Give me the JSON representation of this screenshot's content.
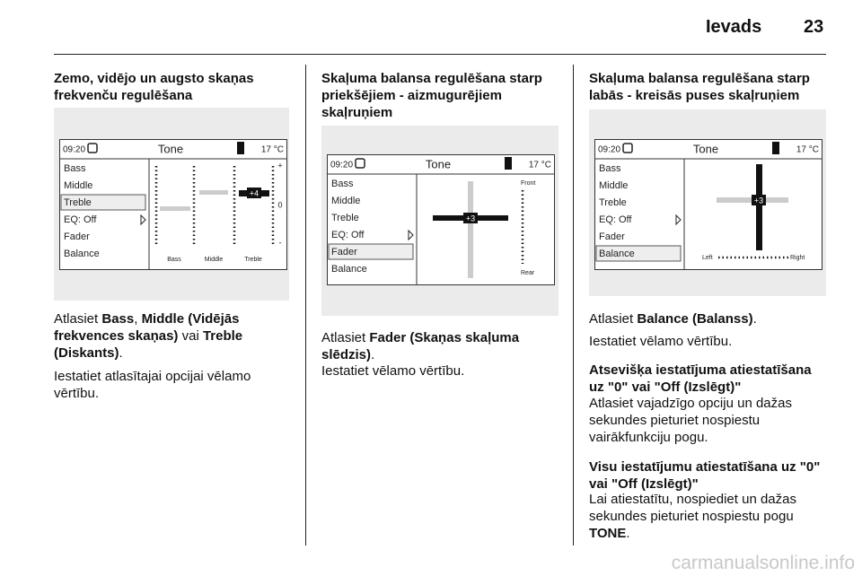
{
  "header": {
    "title": "Ievads",
    "page": "23"
  },
  "columns": [
    {
      "heading": "Zemo, vidējo un augsto skaņas frekvenču regulēšana",
      "screen": {
        "time": "09:20",
        "title": "Tone",
        "temp": "17 °C",
        "menu": [
          "Bass",
          "Middle",
          "Treble",
          "EQ: Off",
          "Fader",
          "Balance"
        ],
        "value": "+4",
        "bands": [
          "Bass",
          "Middle",
          "Treble"
        ],
        "scale": [
          "+",
          "0",
          "-"
        ]
      },
      "paragraphs": [
        [
          {
            "text": "Atlasiet ",
            "bold": false
          },
          {
            "text": "Bass",
            "bold": true
          },
          {
            "text": ", ",
            "bold": false
          },
          {
            "text": "Middle (Vidējās frekvences skaņas)",
            "bold": true
          },
          {
            "text": " vai ",
            "bold": false
          },
          {
            "text": "Treble (Diskants)",
            "bold": true
          },
          {
            "text": ".",
            "bold": false
          }
        ],
        [
          {
            "text": "Iestatiet atlasītajai opcijai vēlamo vērtību.",
            "bold": false
          }
        ]
      ]
    },
    {
      "heading": "Skaļuma balansa regulēšana starp priekšējiem - aizmugurējiem skaļruņiem",
      "screen": {
        "time": "09:20",
        "title": "Tone",
        "temp": "17 °C",
        "menu": [
          "Bass",
          "Middle",
          "Treble",
          "EQ: Off",
          "Fader",
          "Balance"
        ],
        "value": "+3",
        "front": "Front",
        "rear": "Rear"
      },
      "paragraphs": [
        [
          {
            "text": "Atlasiet ",
            "bold": false
          },
          {
            "text": "Fader (Skaņas skaļuma slēdzis)",
            "bold": true
          },
          {
            "text": ".",
            "bold": false
          }
        ],
        [
          {
            "text": "Iestatiet vēlamo vērtību.",
            "bold": false
          }
        ]
      ]
    },
    {
      "heading": "Skaļuma balansa regulēšana starp labās - kreisās puses skaļruņiem",
      "screen": {
        "time": "09:20",
        "title": "Tone",
        "temp": "17 °C",
        "menu": [
          "Bass",
          "Middle",
          "Treble",
          "EQ: Off",
          "Fader",
          "Balance"
        ],
        "value": "+3",
        "left": "Left",
        "right": "Right"
      },
      "paragraphs": [
        [
          {
            "text": "Atlasiet ",
            "bold": false
          },
          {
            "text": "Balance (Balanss)",
            "bold": true
          },
          {
            "text": ".",
            "bold": false
          }
        ],
        [
          {
            "text": "Iestatiet vēlamo vērtību.",
            "bold": false
          }
        ],
        [
          {
            "text": "Atsevišķa iestatījuma atiestatīšana uz \"0\" vai \"Off (Izslēgt)\"",
            "bold": true
          }
        ],
        [
          {
            "text": "Atlasiet vajadzīgo opciju un dažas sekundes pieturiet nospiestu vairākfunkciju pogu.",
            "bold": false
          }
        ],
        [
          {
            "text": "Visu iestatījumu atiestatīšana uz \"0\" vai \"Off (Izslēgt)\"",
            "bold": true
          }
        ],
        [
          {
            "text": "Lai atiestatītu, nospiediet un dažas sekundes pieturiet nospiestu pogu ",
            "bold": false
          },
          {
            "text": "TONE",
            "bold": true
          },
          {
            "text": ".",
            "bold": false
          }
        ]
      ]
    }
  ],
  "watermark": "carmanualsonline.info"
}
